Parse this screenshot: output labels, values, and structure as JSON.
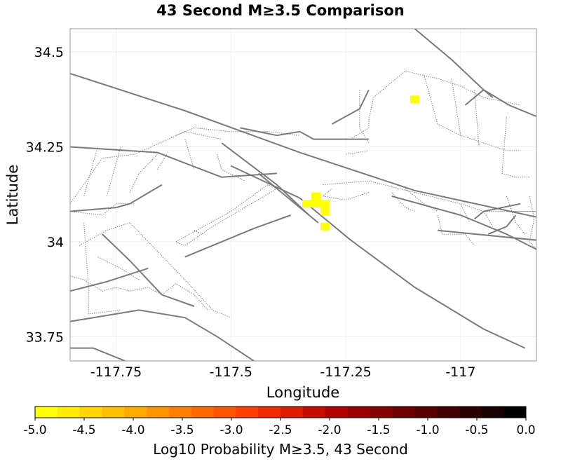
{
  "title": "43 Second M≥3.5 Comparison",
  "x_axis": {
    "label": "Longitude",
    "ticks": [
      -117.75,
      -117.5,
      -117.25,
      -117
    ],
    "tick_labels": [
      "-117.75",
      "-117.5",
      "-117.25",
      "-117"
    ],
    "range": [
      -117.85,
      -116.835
    ]
  },
  "y_axis": {
    "label": "Latitude",
    "ticks": [
      34.5,
      34.25,
      34,
      33.75
    ],
    "tick_labels": [
      "34.5",
      "34.25",
      "34",
      "33.75"
    ],
    "range": [
      33.686,
      34.561
    ]
  },
  "colorbar": {
    "label": "Log10 Probability M≥3.5, 43 Second",
    "ticks": [
      -5.0,
      -4.5,
      -4.0,
      -3.5,
      -3.0,
      -2.5,
      -2.0,
      -1.5,
      -1.0,
      -0.5,
      0.0
    ],
    "tick_labels": [
      "-5.0",
      "-4.5",
      "-4.0",
      "-3.5",
      "-3.0",
      "-2.5",
      "-2.0",
      "-1.5",
      "-1.0",
      "-0.5",
      "0.0"
    ],
    "colors": [
      "#ffff00",
      "#ffea00",
      "#ffd500",
      "#ffbf00",
      "#ffaa00",
      "#ff9500",
      "#ff7f00",
      "#ff6a00",
      "#ff5500",
      "#ff3f00",
      "#f22a00",
      "#dd1c00",
      "#c60e00",
      "#b00000",
      "#9a0000",
      "#840000",
      "#6e0000",
      "#580000",
      "#420000",
      "#2c0000",
      "#160000",
      "#000000"
    ]
  },
  "chart_data": {
    "type": "heatmap",
    "value_range": [
      -5.0,
      0.0
    ],
    "cell_size_deg": 0.02,
    "cells": [
      {
        "lon": -117.335,
        "lat": 34.1,
        "value": -5.0
      },
      {
        "lon": -117.315,
        "lat": 34.1,
        "value": -5.0
      },
      {
        "lon": -117.315,
        "lat": 34.12,
        "value": -5.0
      },
      {
        "lon": -117.295,
        "lat": 34.1,
        "value": -5.0
      },
      {
        "lon": -117.295,
        "lat": 34.08,
        "value": -5.0
      },
      {
        "lon": -117.295,
        "lat": 34.04,
        "value": -5.0
      },
      {
        "lon": -117.1,
        "lat": 34.375,
        "value": -5.0
      }
    ],
    "faults_solid": [
      [
        [
          -117.85,
          34.443
        ],
        [
          -117.6,
          34.345
        ],
        [
          -117.35,
          34.235
        ],
        [
          -117.1,
          34.135
        ],
        [
          -116.835,
          34.065
        ]
      ],
      [
        [
          -117.85,
          34.25
        ],
        [
          -117.66,
          34.235
        ],
        [
          -117.52,
          34.17
        ],
        [
          -117.4,
          34.18
        ]
      ],
      [
        [
          -117.85,
          33.87
        ],
        [
          -117.77,
          33.895
        ],
        [
          -117.68,
          33.93
        ]
      ],
      [
        [
          -117.85,
          33.72
        ],
        [
          -117.8,
          33.72
        ],
        [
          -117.73,
          33.686
        ]
      ],
      [
        [
          -117.85,
          33.79
        ],
        [
          -117.7,
          33.82
        ],
        [
          -117.6,
          33.8
        ],
        [
          -117.53,
          33.75
        ],
        [
          -117.45,
          33.686
        ]
      ],
      [
        [
          -117.6,
          33.96
        ],
        [
          -117.45,
          34.035
        ],
        [
          -117.37,
          34.07
        ]
      ],
      [
        [
          -117.52,
          34.26
        ],
        [
          -117.4,
          34.15
        ],
        [
          -117.33,
          34.07
        ]
      ],
      [
        [
          -117.5,
          34.2
        ],
        [
          -117.35,
          34.115
        ],
        [
          -117.24,
          34.005
        ],
        [
          -117.1,
          33.88
        ],
        [
          -116.95,
          33.77
        ],
        [
          -116.86,
          33.72
        ]
      ],
      [
        [
          -117.44,
          34.18
        ],
        [
          -117.38,
          34.12
        ],
        [
          -117.31,
          34.05
        ]
      ],
      [
        [
          -117.28,
          34.31
        ],
        [
          -117.25,
          34.33
        ],
        [
          -117.22,
          34.35
        ],
        [
          -117.2,
          34.4
        ]
      ],
      [
        [
          -117.78,
          34.02
        ],
        [
          -117.72,
          33.95
        ],
        [
          -117.65,
          33.86
        ],
        [
          -117.58,
          33.83
        ]
      ],
      [
        [
          -117.48,
          34.3
        ],
        [
          -117.4,
          34.28
        ],
        [
          -117.35,
          34.29
        ],
        [
          -117.32,
          34.27
        ],
        [
          -117.22,
          34.27
        ],
        [
          -117.2,
          34.27
        ]
      ],
      [
        [
          -117.1,
          34.561
        ],
        [
          -117.02,
          34.48
        ],
        [
          -116.95,
          34.4
        ],
        [
          -116.895,
          34.36
        ],
        [
          -116.835,
          34.33
        ]
      ],
      [
        [
          -117.05,
          34.03
        ],
        [
          -116.8,
          34.0
        ],
        [
          -116.835,
          34.035
        ]
      ],
      [
        [
          -117.15,
          34.12
        ],
        [
          -117.0,
          34.07
        ],
        [
          -116.9,
          34.02
        ],
        [
          -116.835,
          33.98
        ]
      ],
      [
        [
          -117.85,
          34.08
        ],
        [
          -117.75,
          34.09
        ],
        [
          -117.72,
          34.1
        ],
        [
          -117.65,
          34.15
        ]
      ],
      [
        [
          -116.99,
          34.36
        ],
        [
          -116.95,
          34.4
        ],
        [
          -116.93,
          34.38
        ]
      ],
      [
        [
          -116.87,
          34.1
        ],
        [
          -116.95,
          34.08
        ],
        [
          -116.97,
          34.06
        ]
      ],
      [
        [
          -116.94,
          34.02
        ],
        [
          -116.9,
          34.04
        ],
        [
          -116.88,
          34.07
        ]
      ]
    ],
    "faults_dotted": [
      [
        [
          -117.85,
          34.1
        ],
        [
          -117.78,
          34.22
        ],
        [
          -117.71,
          34.23
        ],
        [
          -117.6,
          34.29
        ],
        [
          -117.52,
          34.27
        ]
      ],
      [
        [
          -117.82,
          34.12
        ],
        [
          -117.79,
          34.25
        ]
      ],
      [
        [
          -117.77,
          34.12
        ],
        [
          -117.74,
          34.25
        ]
      ],
      [
        [
          -117.72,
          34.13
        ],
        [
          -117.7,
          34.18
        ],
        [
          -117.66,
          34.23
        ]
      ],
      [
        [
          -117.85,
          34.08
        ],
        [
          -117.78,
          34.07
        ],
        [
          -117.75,
          34.1
        ],
        [
          -117.71,
          34.1
        ]
      ],
      [
        [
          -117.85,
          33.91
        ],
        [
          -117.82,
          33.9
        ],
        [
          -117.78,
          33.87
        ],
        [
          -117.75,
          33.88
        ],
        [
          -117.72,
          33.87
        ],
        [
          -117.68,
          33.88
        ],
        [
          -117.65,
          33.86
        ],
        [
          -117.62,
          33.89
        ],
        [
          -117.58,
          33.86
        ],
        [
          -117.55,
          33.82
        ]
      ],
      [
        [
          -117.82,
          34.05
        ],
        [
          -117.81,
          33.88
        ],
        [
          -117.81,
          33.81
        ],
        [
          -117.74,
          33.82
        ]
      ],
      [
        [
          -117.83,
          33.99
        ],
        [
          -117.77,
          34.03
        ],
        [
          -117.72,
          34.05
        ],
        [
          -117.68,
          34.0
        ],
        [
          -117.64,
          33.95
        ],
        [
          -117.6,
          33.9
        ],
        [
          -117.57,
          33.86
        ],
        [
          -117.54,
          33.82
        ],
        [
          -117.5,
          33.8
        ]
      ],
      [
        [
          -117.79,
          33.96
        ],
        [
          -117.74,
          33.93
        ],
        [
          -117.7,
          33.9
        ]
      ],
      [
        [
          -117.62,
          34.28
        ],
        [
          -117.58,
          34.3
        ],
        [
          -117.5,
          34.29
        ],
        [
          -117.42,
          34.29
        ],
        [
          -117.35,
          34.28
        ]
      ],
      [
        [
          -117.53,
          34.23
        ],
        [
          -117.52,
          34.19
        ],
        [
          -117.47,
          34.16
        ]
      ],
      [
        [
          -117.6,
          34.27
        ],
        [
          -117.58,
          34.19
        ]
      ],
      [
        [
          -117.66,
          34.19
        ],
        [
          -117.64,
          34.23
        ]
      ],
      [
        [
          -117.62,
          34.0
        ],
        [
          -117.5,
          34.08
        ],
        [
          -117.42,
          34.15
        ],
        [
          -117.4,
          34.14
        ],
        [
          -117.54,
          34.04
        ],
        [
          -117.6,
          33.99
        ],
        [
          -117.62,
          34.0
        ]
      ],
      [
        [
          -117.58,
          34.03
        ],
        [
          -117.56,
          34.02
        ]
      ],
      [
        [
          -117.3,
          34.15
        ],
        [
          -117.2,
          34.16
        ],
        [
          -117.1,
          34.13
        ],
        [
          -117.0,
          34.1
        ],
        [
          -116.95,
          34.08
        ],
        [
          -116.835,
          34.08
        ]
      ],
      [
        [
          -117.2,
          34.13
        ],
        [
          -117.25,
          34.11
        ],
        [
          -117.3,
          34.12
        ],
        [
          -117.28,
          34.14
        ]
      ],
      [
        [
          -117.2,
          34.32
        ],
        [
          -117.19,
          34.38
        ],
        [
          -117.16,
          34.41
        ],
        [
          -117.12,
          34.45
        ],
        [
          -117.09,
          34.44
        ],
        [
          -117.05,
          34.43
        ],
        [
          -117.0,
          34.41
        ],
        [
          -116.95,
          34.38
        ],
        [
          -116.87,
          34.36
        ]
      ],
      [
        [
          -117.24,
          34.27
        ],
        [
          -117.2,
          34.3
        ],
        [
          -117.2,
          34.32
        ]
      ],
      [
        [
          -117.25,
          34.23
        ],
        [
          -117.2,
          34.24
        ]
      ],
      [
        [
          -117.08,
          34.44
        ],
        [
          -117.05,
          34.31
        ],
        [
          -117.0,
          34.28
        ],
        [
          -116.95,
          34.26
        ],
        [
          -116.9,
          34.24
        ],
        [
          -116.87,
          34.24
        ]
      ],
      [
        [
          -117.22,
          34.4
        ],
        [
          -117.22,
          34.3
        ],
        [
          -117.2,
          34.26
        ]
      ],
      [
        [
          -116.97,
          34.4
        ],
        [
          -116.96,
          34.25
        ]
      ],
      [
        [
          -117.02,
          34.43
        ],
        [
          -117.0,
          34.28
        ]
      ],
      [
        [
          -116.9,
          34.33
        ],
        [
          -116.91,
          34.18
        ],
        [
          -116.88,
          34.17
        ],
        [
          -116.85,
          34.17
        ]
      ],
      [
        [
          -117.05,
          34.07
        ],
        [
          -117.04,
          34.02
        ],
        [
          -116.99,
          34.02
        ],
        [
          -116.97,
          33.99
        ]
      ],
      [
        [
          -117.0,
          34.1
        ],
        [
          -116.98,
          34.05
        ]
      ],
      [
        [
          -116.95,
          34.08
        ],
        [
          -116.93,
          34.04
        ]
      ],
      [
        [
          -116.9,
          34.12
        ],
        [
          -116.88,
          34.05
        ],
        [
          -116.86,
          34.02
        ]
      ],
      [
        [
          -116.85,
          34.12
        ],
        [
          -116.84,
          34.06
        ],
        [
          -116.85,
          34.0
        ],
        [
          -116.835,
          33.98
        ]
      ],
      [
        [
          -116.9,
          34.08
        ],
        [
          -116.835,
          34.08
        ]
      ],
      [
        [
          -117.12,
          34.14
        ],
        [
          -117.08,
          34.1
        ],
        [
          -117.05,
          34.08
        ]
      ],
      [
        [
          -117.15,
          34.13
        ],
        [
          -117.12,
          34.09
        ],
        [
          -117.1,
          34.08
        ]
      ]
    ]
  }
}
